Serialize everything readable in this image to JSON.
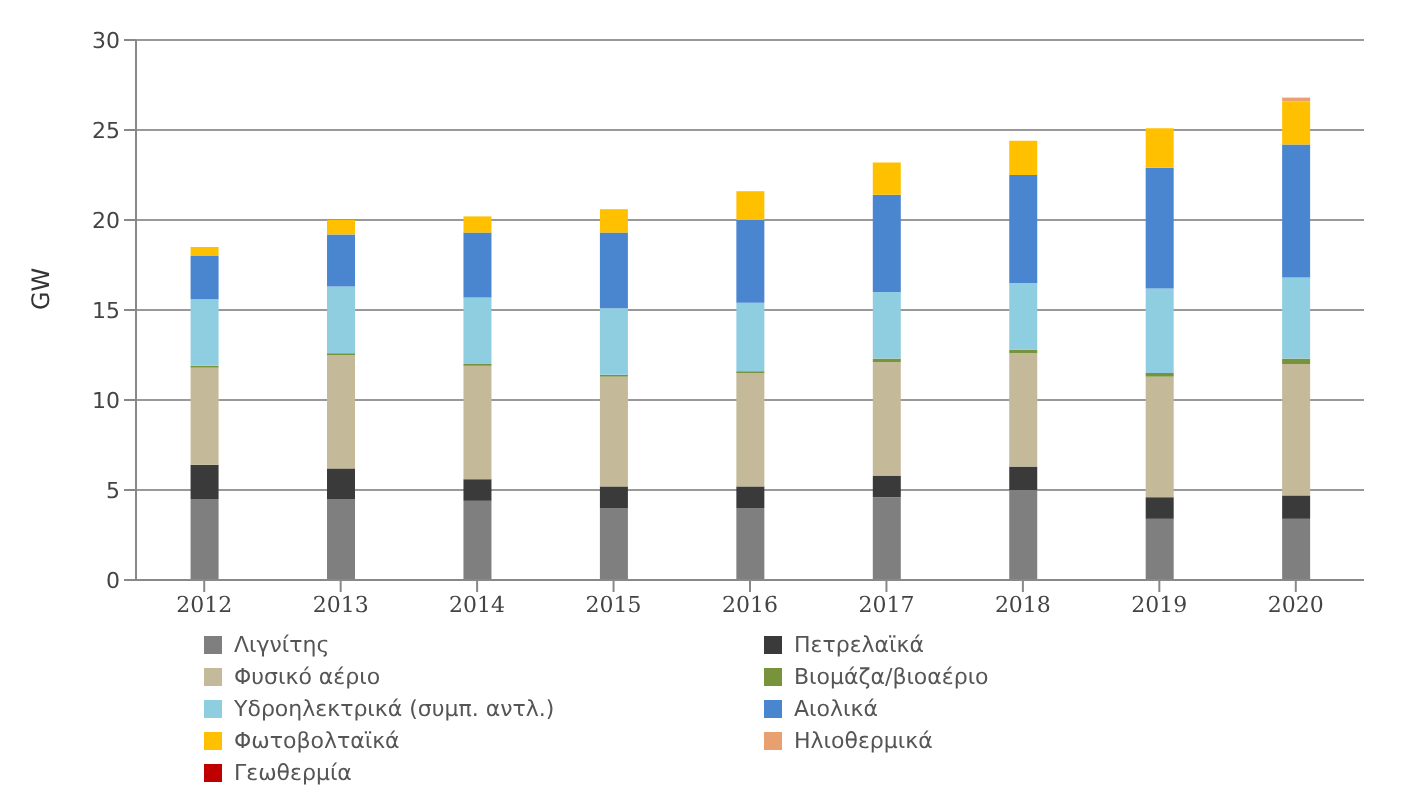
{
  "chart_data": {
    "type": "bar",
    "stacked": true,
    "ylabel": "GW",
    "categories": [
      "2012",
      "2013",
      "2014",
      "2015",
      "2016",
      "2017",
      "2018",
      "2019",
      "2020"
    ],
    "ylim": [
      0,
      30
    ],
    "yticks": [
      0,
      5,
      10,
      15,
      20,
      25,
      30
    ],
    "grid": "y",
    "legend": "bottom",
    "series": [
      {
        "name": "Λιγνίτης",
        "color": "#7f7f7f",
        "values": [
          4.5,
          4.5,
          4.4,
          4.0,
          4.0,
          4.6,
          5.0,
          3.4,
          3.4
        ]
      },
      {
        "name": "Πετρελαϊκά",
        "color": "#3a3a3a",
        "values": [
          1.9,
          1.7,
          1.2,
          1.2,
          1.2,
          1.2,
          1.3,
          1.2,
          1.3
        ]
      },
      {
        "name": "Φυσικό αέριο",
        "color": "#c4b998",
        "values": [
          5.4,
          6.3,
          6.3,
          6.1,
          6.3,
          6.3,
          6.3,
          6.7,
          7.3
        ]
      },
      {
        "name": "Βιομάζα/βιοαέριο",
        "color": "#77933c",
        "values": [
          0.1,
          0.1,
          0.1,
          0.1,
          0.1,
          0.2,
          0.2,
          0.2,
          0.3
        ]
      },
      {
        "name": "Υδροηλεκτρικά (συμπ. αντλ.)",
        "color": "#8fcde0",
        "values": [
          3.7,
          3.7,
          3.7,
          3.7,
          3.8,
          3.7,
          3.7,
          4.7,
          4.5
        ]
      },
      {
        "name": "Αιολικά",
        "color": "#4a86d0",
        "values": [
          2.4,
          2.9,
          3.6,
          4.2,
          4.6,
          5.4,
          6.0,
          6.7,
          7.4
        ]
      },
      {
        "name": "Φωτοβολταϊκά",
        "color": "#ffc000",
        "values": [
          0.5,
          0.8,
          0.9,
          1.3,
          1.6,
          1.8,
          1.9,
          2.2,
          2.4
        ]
      },
      {
        "name": "Ηλιοθερμικά",
        "color": "#e8a070",
        "values": [
          0,
          0,
          0,
          0,
          0,
          0,
          0,
          0,
          0.2
        ]
      },
      {
        "name": "Γεωθερμία",
        "color": "#c00000",
        "values": [
          0,
          0,
          0,
          0,
          0,
          0,
          0,
          0,
          0
        ]
      }
    ]
  }
}
